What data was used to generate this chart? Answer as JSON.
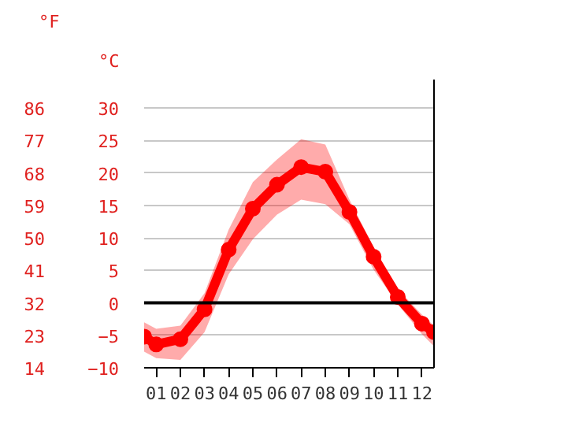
{
  "chart_data": {
    "type": "line",
    "x": [
      0.5,
      1,
      2,
      3,
      4,
      5,
      6,
      7,
      8,
      9,
      10,
      11,
      12,
      12.5
    ],
    "series": [
      {
        "color": "#ff0000",
        "values": [
          -5.2,
          -6.4,
          -5.6,
          -1.0,
          8.2,
          14.5,
          18.2,
          20.9,
          20.2,
          14.0,
          7.1,
          0.9,
          -3.2,
          -4.5
        ],
        "lower": [
          -7.5,
          -8.5,
          -8.8,
          -4.5,
          4.4,
          9.8,
          13.6,
          15.9,
          15.2,
          12.1,
          5.1,
          -0.2,
          -4.8,
          -6.7
        ],
        "upper": [
          -3.0,
          -4.0,
          -3.5,
          1.5,
          11.3,
          18.6,
          22.1,
          25.2,
          24.4,
          15.9,
          8.6,
          2.1,
          -1.8,
          -3.5
        ]
      }
    ],
    "xlim": [
      0.5,
      12.5
    ],
    "xticks": [
      {
        "value": 1,
        "label": "01"
      },
      {
        "value": 2,
        "label": "02"
      },
      {
        "value": 3,
        "label": "03"
      },
      {
        "value": 4,
        "label": "04"
      },
      {
        "value": 5,
        "label": "05"
      },
      {
        "value": 6,
        "label": "06"
      },
      {
        "value": 7,
        "label": "07"
      },
      {
        "value": 8,
        "label": "08"
      },
      {
        "value": 9,
        "label": "09"
      },
      {
        "value": 10,
        "label": "10"
      },
      {
        "value": 11,
        "label": "11"
      },
      {
        "value": 12,
        "label": "12"
      }
    ],
    "ylabel": "°C",
    "y2label": "°F",
    "ylim": [
      -10,
      34.4
    ],
    "yticks": [
      -10,
      -5,
      0,
      5,
      10,
      15,
      20,
      25,
      30
    ],
    "y2lim": [
      14,
      93.9
    ],
    "y2ticks": [
      14,
      23,
      32,
      41,
      50,
      59,
      68,
      77,
      86
    ],
    "ref_lines": [
      {
        "axis": "y",
        "value": 0,
        "label": null,
        "color": "#000000"
      }
    ],
    "grid": "y",
    "marker": "circle",
    "line_style": "solid"
  }
}
